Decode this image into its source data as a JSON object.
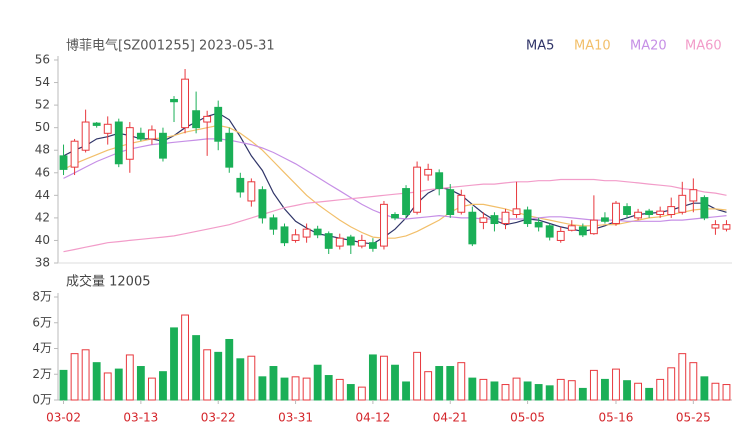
{
  "chart_data": {
    "type": "candlestick",
    "title": "博菲电气[SZ001255] 2023-05-31",
    "up_color": "#e8383d",
    "down_color": "#1aaf57",
    "categories": [
      "03-02",
      null,
      null,
      null,
      null,
      null,
      null,
      "03-13",
      null,
      null,
      null,
      null,
      null,
      null,
      "03-22",
      null,
      null,
      null,
      null,
      null,
      null,
      "03-31",
      null,
      null,
      null,
      null,
      null,
      null,
      "04-12",
      null,
      null,
      null,
      null,
      null,
      null,
      "04-21",
      null,
      null,
      null,
      null,
      null,
      null,
      "05-05",
      null,
      null,
      null,
      null,
      null,
      null,
      null,
      "05-16",
      null,
      null,
      null,
      null,
      null,
      null,
      "05-25",
      null,
      null,
      null
    ],
    "open": [
      47.5,
      46.5,
      48,
      50.4,
      49.5,
      50.5,
      47.2,
      49.5,
      49,
      49.5,
      52.5,
      50,
      51.5,
      50.5,
      51.8,
      49.5,
      45.5,
      43.5,
      44.5,
      42,
      41.2,
      40,
      40.3,
      41,
      40.6,
      39.5,
      40.3,
      39.5,
      39.8,
      39.5,
      42.3,
      44.6,
      42.5,
      45.8,
      46,
      44.5,
      42.5,
      42.5,
      41.6,
      42.2,
      41.5,
      42.3,
      42.7,
      41.6,
      41.3,
      40,
      40.9,
      41.2,
      40.6,
      42,
      41.5,
      43,
      42,
      42.6,
      42.3,
      42.3,
      42.5,
      43.5,
      43.8,
      41.1,
      41
    ],
    "high": [
      48.5,
      49,
      51.6,
      50.5,
      51,
      50.8,
      50.5,
      50,
      50.2,
      50,
      52.8,
      55.2,
      53.2,
      51.5,
      52.4,
      50,
      46,
      45.5,
      44.8,
      42.3,
      41.5,
      41,
      41.5,
      41.3,
      40.8,
      40.6,
      40.5,
      40.5,
      40.2,
      43.5,
      42.5,
      44.9,
      47,
      46.8,
      46.3,
      45,
      44.5,
      43,
      42.5,
      42.5,
      42.8,
      45.2,
      43,
      42,
      41.5,
      41.2,
      41.8,
      41.5,
      44,
      42.5,
      43.5,
      43.3,
      42.8,
      42.8,
      43,
      43.8,
      45.2,
      45.5,
      44,
      41.8,
      41.8
    ],
    "low": [
      45.8,
      45.8,
      47.8,
      50,
      48.5,
      46.5,
      46,
      48.8,
      48.5,
      47,
      50.5,
      49.5,
      49.5,
      47.5,
      48,
      46,
      43.8,
      43,
      41.5,
      40.5,
      39.5,
      39.8,
      39.8,
      40.2,
      38.8,
      39.2,
      38.8,
      39.3,
      39,
      39.2,
      41.8,
      42,
      42.3,
      45.3,
      44,
      42,
      42.3,
      39.5,
      41,
      40.8,
      41,
      42,
      41.2,
      40.8,
      40,
      39.8,
      40.8,
      40.3,
      40.5,
      41.5,
      41.3,
      42,
      41.8,
      42,
      42,
      42,
      42.3,
      42.5,
      41.8,
      40.5,
      40.8
    ],
    "close": [
      46.3,
      48.8,
      50.5,
      50.2,
      50.3,
      46.8,
      50,
      49,
      49.8,
      47.3,
      52.3,
      54.3,
      50,
      51,
      48.8,
      46.5,
      44.3,
      45.2,
      42,
      41,
      39.8,
      40.5,
      41,
      40.5,
      39.3,
      40.2,
      39.6,
      40,
      39.3,
      43.2,
      42,
      42.3,
      46.5,
      46.3,
      44.6,
      42.3,
      44,
      39.7,
      42,
      41.5,
      42.5,
      42.8,
      41.5,
      41.2,
      40.3,
      40.8,
      41.3,
      40.5,
      41.8,
      41.7,
      43.3,
      42.3,
      42.5,
      42.3,
      42.6,
      43,
      44,
      44.5,
      42,
      41.4,
      41.4
    ],
    "ylim": [
      38,
      56
    ],
    "yticks": [
      38,
      40,
      42,
      44,
      46,
      48,
      50,
      52,
      54,
      56
    ],
    "series": [
      {
        "name": "MA5",
        "color": "#2f3468",
        "values": [
          47.5,
          48,
          48.4,
          49,
          49.2,
          49.5,
          49.3,
          49,
          49,
          48.8,
          49.3,
          50,
          50.5,
          51,
          51.3,
          50.7,
          49.2,
          47.5,
          46.2,
          44.2,
          42.8,
          41.7,
          41.1,
          40.6,
          40.4,
          40.2,
          40,
          39.8,
          39.7,
          40.3,
          41,
          42,
          43.3,
          44.2,
          44.7,
          44.5,
          44,
          43.2,
          42.4,
          41.8,
          41.4,
          41.6,
          41.9,
          41.8,
          41.5,
          41.2,
          41,
          40.8,
          41,
          41.3,
          41.7,
          42,
          42.3,
          42.4,
          42.5,
          42.7,
          43,
          43.3,
          43.3,
          42.8,
          42.5
        ]
      },
      {
        "name": "MA10",
        "color": "#f2bf6a",
        "values": [
          46.3,
          46.8,
          47.2,
          47.6,
          48,
          48.3,
          48.6,
          48.8,
          49,
          49.1,
          49.3,
          49.6,
          49.8,
          50,
          50.2,
          50,
          49.5,
          48.8,
          48,
          47,
          46,
          45,
          44,
          43.2,
          42.5,
          41.8,
          41.2,
          40.7,
          40.3,
          40.2,
          40.2,
          40.4,
          40.8,
          41.3,
          41.8,
          42.5,
          43,
          43.2,
          43.2,
          43,
          42.8,
          42.5,
          42.2,
          42,
          41.8,
          41.6,
          41.4,
          41.3,
          41.3,
          41.4,
          41.4,
          41.6,
          41.8,
          42,
          42.1,
          42.3,
          42.5,
          42.7,
          42.8,
          42.8,
          42.7
        ]
      },
      {
        "name": "MA20",
        "color": "#c68fe6",
        "values": [
          45.5,
          46,
          46.5,
          47,
          47.4,
          47.8,
          48.1,
          48.3,
          48.5,
          48.6,
          48.7,
          48.8,
          48.9,
          49,
          49,
          48.9,
          48.7,
          48.5,
          48.2,
          47.8,
          47.3,
          46.8,
          46.2,
          45.6,
          45,
          44.4,
          43.8,
          43.2,
          42.7,
          42.3,
          42,
          41.9,
          42,
          42.1,
          42.2,
          42.1,
          42,
          42,
          41.9,
          41.9,
          41.9,
          41.9,
          41.9,
          42,
          42.1,
          42.1,
          42,
          41.9,
          41.8,
          41.8,
          41.8,
          41.7,
          41.7,
          41.7,
          41.7,
          41.8,
          41.8,
          41.9,
          42,
          42.1,
          42.2
        ]
      },
      {
        "name": "MA60",
        "color": "#f29cc9",
        "values": [
          39,
          39.2,
          39.4,
          39.6,
          39.8,
          39.9,
          40,
          40.1,
          40.2,
          40.3,
          40.4,
          40.6,
          40.8,
          41,
          41.2,
          41.4,
          41.7,
          42,
          42.3,
          42.6,
          42.9,
          43.1,
          43.3,
          43.4,
          43.5,
          43.6,
          43.7,
          43.8,
          43.9,
          44,
          44.1,
          44.2,
          44.3,
          44.5,
          44.6,
          44.7,
          44.8,
          44.9,
          45,
          45,
          45.1,
          45.2,
          45.2,
          45.3,
          45.3,
          45.4,
          45.4,
          45.4,
          45.4,
          45.3,
          45.3,
          45.2,
          45.1,
          45,
          44.9,
          44.8,
          44.6,
          44.5,
          44.3,
          44.2,
          44
        ]
      }
    ],
    "volume": {
      "label": "成交量 12005",
      "values": [
        2.3,
        3.6,
        3.9,
        2.9,
        2.1,
        2.4,
        3.5,
        2.6,
        1.7,
        2.2,
        5.6,
        6.6,
        5.0,
        3.9,
        3.7,
        4.7,
        3.2,
        3.4,
        1.8,
        2.6,
        1.7,
        1.8,
        1.7,
        2.7,
        1.9,
        1.6,
        1.2,
        1.0,
        3.5,
        3.4,
        2.7,
        1.4,
        3.7,
        2.2,
        2.6,
        2.6,
        2.9,
        1.7,
        1.6,
        1.4,
        1.2,
        1.7,
        1.4,
        1.2,
        1.1,
        1.6,
        1.5,
        0.9,
        2.3,
        1.6,
        2.4,
        1.5,
        1.3,
        0.9,
        1.6,
        2.5,
        3.6,
        2.9,
        1.8,
        1.3,
        1.2
      ],
      "ylim": [
        0,
        8
      ],
      "yticks": [
        {
          "value": 0,
          "label": "0万"
        },
        {
          "value": 2,
          "label": "2万"
        },
        {
          "value": 4,
          "label": "4万"
        },
        {
          "value": 6,
          "label": "6万"
        },
        {
          "value": 8,
          "label": "8万"
        }
      ]
    }
  }
}
